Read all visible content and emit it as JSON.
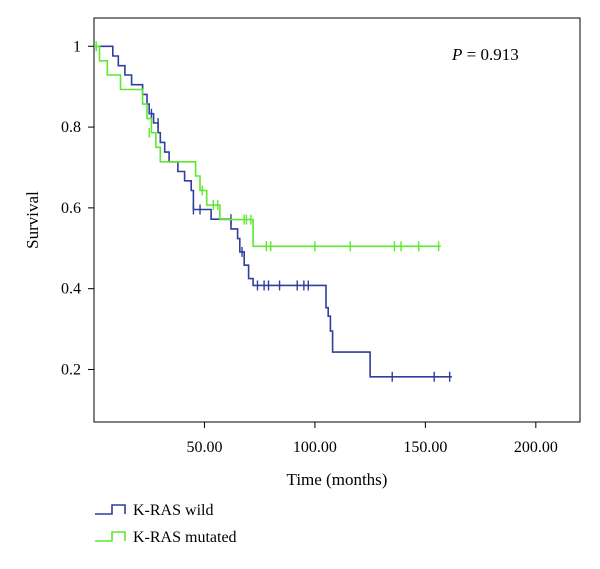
{
  "chart_data": {
    "type": "line",
    "subtype": "kaplan-meier",
    "xlabel": "Time (months)",
    "ylabel": "Survival",
    "xlim": [
      0,
      220
    ],
    "ylim": [
      0.07,
      1.07
    ],
    "xticks": [
      50,
      100,
      150,
      200
    ],
    "xtick_labels": [
      "50.00",
      "100.00",
      "150.00",
      "200.00"
    ],
    "yticks": [
      0.2,
      0.4,
      0.6,
      0.8,
      1
    ],
    "ytick_labels": [
      "0.2",
      "0.4",
      "0.6",
      "0.8",
      "1"
    ],
    "grid": false,
    "legend_position": "bottom-left",
    "annotation": {
      "prefix": "P",
      "text": " = 0.913"
    },
    "series": [
      {
        "name": "K-RAS wild",
        "color": "#2e3f9c",
        "steps": [
          [
            0,
            1.0
          ],
          [
            8.5,
            0.976
          ],
          [
            11,
            0.952
          ],
          [
            14,
            0.929
          ],
          [
            17,
            0.905
          ],
          [
            22,
            0.881
          ],
          [
            24,
            0.857
          ],
          [
            25,
            0.833
          ],
          [
            27,
            0.81
          ],
          [
            29,
            0.786
          ],
          [
            30,
            0.762
          ],
          [
            32,
            0.738
          ],
          [
            34,
            0.714
          ],
          [
            38,
            0.69
          ],
          [
            41,
            0.667
          ],
          [
            44,
            0.643
          ],
          [
            45,
            0.596
          ],
          [
            53,
            0.572
          ],
          [
            62,
            0.548
          ],
          [
            65,
            0.524
          ],
          [
            66,
            0.491
          ],
          [
            68,
            0.458
          ],
          [
            70,
            0.425
          ],
          [
            72,
            0.408
          ],
          [
            105,
            0.353
          ],
          [
            106,
            0.332
          ],
          [
            107,
            0.295
          ],
          [
            108,
            0.243
          ],
          [
            125,
            0.182
          ]
        ],
        "end": 162,
        "censored": [
          [
            26,
            0.833
          ],
          [
            29,
            0.81
          ],
          [
            45,
            0.596
          ],
          [
            48,
            0.596
          ],
          [
            62,
            0.572
          ],
          [
            67,
            0.491
          ],
          [
            74,
            0.408
          ],
          [
            77,
            0.408
          ],
          [
            79,
            0.408
          ],
          [
            84,
            0.408
          ],
          [
            92,
            0.408
          ],
          [
            95,
            0.408
          ],
          [
            97,
            0.408
          ],
          [
            135,
            0.182
          ],
          [
            154,
            0.182
          ],
          [
            161,
            0.182
          ]
        ]
      },
      {
        "name": "K-RAS mutated",
        "color": "#5ee82f",
        "steps": [
          [
            0,
            1.0
          ],
          [
            2.5,
            0.964
          ],
          [
            6,
            0.929
          ],
          [
            12,
            0.893
          ],
          [
            22,
            0.857
          ],
          [
            24,
            0.821
          ],
          [
            26,
            0.786
          ],
          [
            28,
            0.75
          ],
          [
            30,
            0.714
          ],
          [
            46,
            0.679
          ],
          [
            48,
            0.643
          ],
          [
            51,
            0.607
          ],
          [
            57,
            0.571
          ],
          [
            72,
            0.505
          ]
        ],
        "end": 157,
        "censored": [
          [
            1,
            1.0
          ],
          [
            25,
            0.786
          ],
          [
            49,
            0.643
          ],
          [
            54,
            0.607
          ],
          [
            56,
            0.607
          ],
          [
            68,
            0.571
          ],
          [
            69,
            0.571
          ],
          [
            71,
            0.571
          ],
          [
            78,
            0.505
          ],
          [
            80,
            0.505
          ],
          [
            100,
            0.505
          ],
          [
            116,
            0.505
          ],
          [
            136,
            0.505
          ],
          [
            139,
            0.505
          ],
          [
            147,
            0.505
          ],
          [
            156,
            0.505
          ]
        ]
      }
    ]
  }
}
